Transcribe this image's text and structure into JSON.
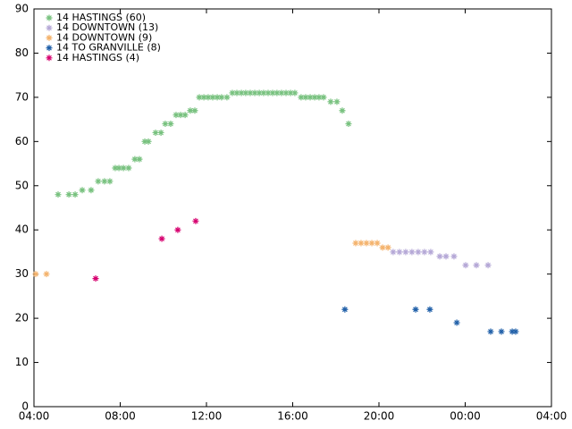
{
  "chart_data": {
    "type": "scatter",
    "xlim": [
      4,
      28
    ],
    "xticks": [
      {
        "value": 4,
        "label": "04:00"
      },
      {
        "value": 8,
        "label": "08:00"
      },
      {
        "value": 12,
        "label": "12:00"
      },
      {
        "value": 16,
        "label": "16:00"
      },
      {
        "value": 20,
        "label": "20:00"
      },
      {
        "value": 24,
        "label": "00:00"
      },
      {
        "value": 28,
        "label": "04:00"
      }
    ],
    "ylim": [
      0,
      90
    ],
    "yticks": [
      0,
      10,
      20,
      30,
      40,
      50,
      60,
      70,
      80,
      90
    ],
    "grid": false,
    "legend": "upper-left",
    "series": [
      {
        "name": "14 HASTINGS (60)",
        "color": "#77c17e",
        "x": [
          5.12,
          5.62,
          5.91,
          6.24,
          6.65,
          6.98,
          7.27,
          7.52,
          7.77,
          7.94,
          8.15,
          8.39,
          8.68,
          8.89,
          9.14,
          9.31,
          9.64,
          9.89,
          10.09,
          10.34,
          10.59,
          10.8,
          11.01,
          11.25,
          11.46,
          11.67,
          11.88,
          12.08,
          12.29,
          12.5,
          12.7,
          12.95,
          13.2,
          13.41,
          13.62,
          13.82,
          14.03,
          14.24,
          14.45,
          14.65,
          14.86,
          15.07,
          15.27,
          15.48,
          15.69,
          15.9,
          16.1,
          16.39,
          16.6,
          16.81,
          17.02,
          17.22,
          17.43,
          17.76,
          18.05,
          18.3,
          18.59
        ],
        "values": [
          48,
          48,
          48,
          49,
          49,
          51,
          51,
          51,
          54,
          54,
          54,
          54,
          56,
          56,
          60,
          60,
          62,
          62,
          64,
          64,
          66,
          66,
          66,
          67,
          67,
          70,
          70,
          70,
          70,
          70,
          70,
          70,
          71,
          71,
          71,
          71,
          71,
          71,
          71,
          71,
          71,
          71,
          71,
          71,
          71,
          71,
          71,
          70,
          70,
          70,
          70,
          70,
          70,
          69,
          69,
          67,
          64
        ]
      },
      {
        "name": "14 DOWNTOWN (13)",
        "color": "#b4a7d6",
        "x": [
          20.66,
          20.95,
          21.24,
          21.53,
          21.82,
          22.11,
          22.4,
          22.82,
          23.11,
          23.48,
          24.02,
          24.52,
          25.06
        ],
        "values": [
          35,
          35,
          35,
          35,
          35,
          35,
          35,
          34,
          34,
          34,
          32,
          32,
          32
        ]
      },
      {
        "name": "14 DOWNTOWN (9)",
        "color": "#f4b26b",
        "x": [
          4.08,
          4.58,
          18.92,
          19.17,
          19.42,
          19.67,
          19.92,
          20.17,
          20.42
        ],
        "values": [
          30,
          30,
          37,
          37,
          37,
          37,
          37,
          36,
          36
        ]
      },
      {
        "name": "14 TO GRANVILLE (8)",
        "color": "#1f5fa8",
        "x": [
          18.42,
          21.7,
          22.36,
          23.61,
          25.18,
          25.68,
          26.18,
          26.34
        ],
        "values": [
          22,
          22,
          22,
          19,
          17,
          17,
          17,
          17
        ]
      },
      {
        "name": "14 HASTINGS (4)",
        "color": "#d6006f",
        "x": [
          6.86,
          9.93,
          10.67,
          11.5
        ],
        "values": [
          29,
          38,
          40,
          42
        ]
      }
    ]
  }
}
